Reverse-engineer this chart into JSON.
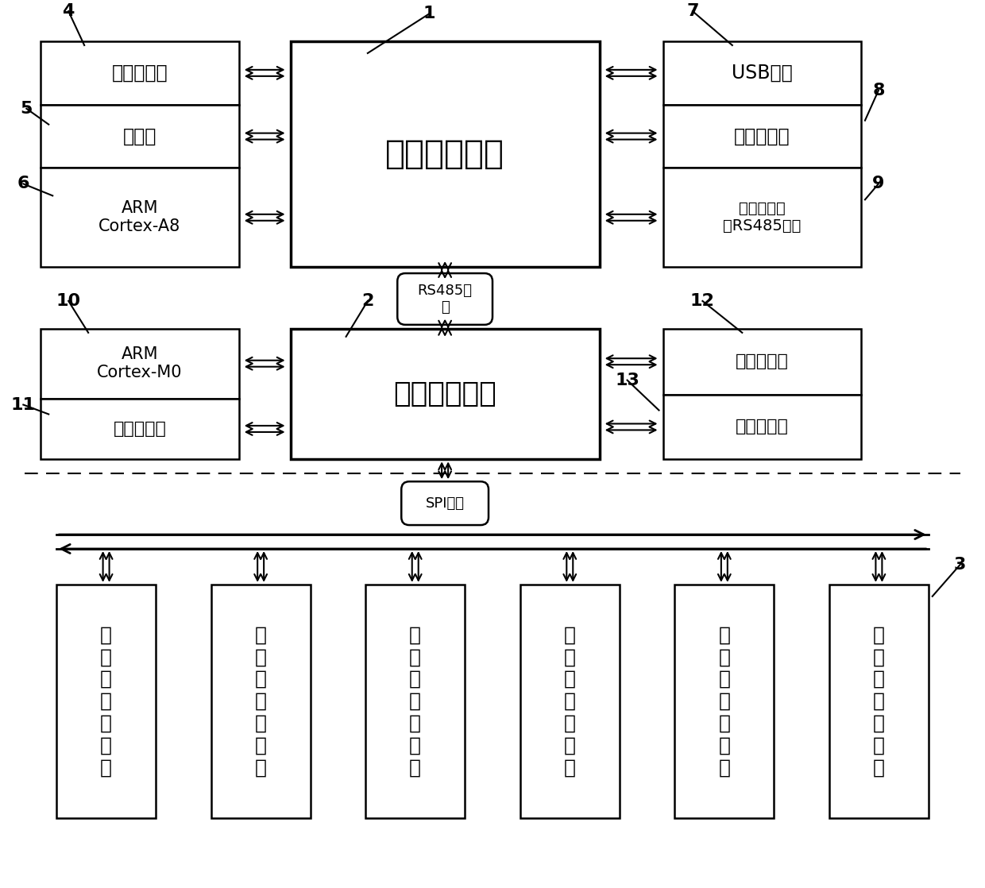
{
  "bg_color": "#ffffff",
  "line_color": "#000000",
  "labels": {
    "unit1": "人机交互单元",
    "unit2": "实时控制单元",
    "lcd": "液晶显示屏",
    "touch": "触摸屏",
    "arm_a8": "ARM\nCortex-A8",
    "arm_m0": "ARM\nCortex-M0",
    "ferro": "铁电存储器",
    "usb": "USB接口",
    "eth": "以太网接口",
    "rs485_dc": "数据中心通\n讯RS485接口",
    "lightning": "防雷器输入",
    "relay": "继电器输出",
    "rs485_bus": "RS485总\n线",
    "spi_bus": "SPI总线",
    "module": "电\n参\n数\n采\n集\n模\n块"
  },
  "numbers": {
    "n1": "1",
    "n2": "2",
    "n3": "3",
    "n4": "4",
    "n5": "5",
    "n6": "6",
    "n7": "7",
    "n8": "8",
    "n9": "9",
    "n10": "10",
    "n11": "11",
    "n12": "12",
    "n13": "13"
  }
}
